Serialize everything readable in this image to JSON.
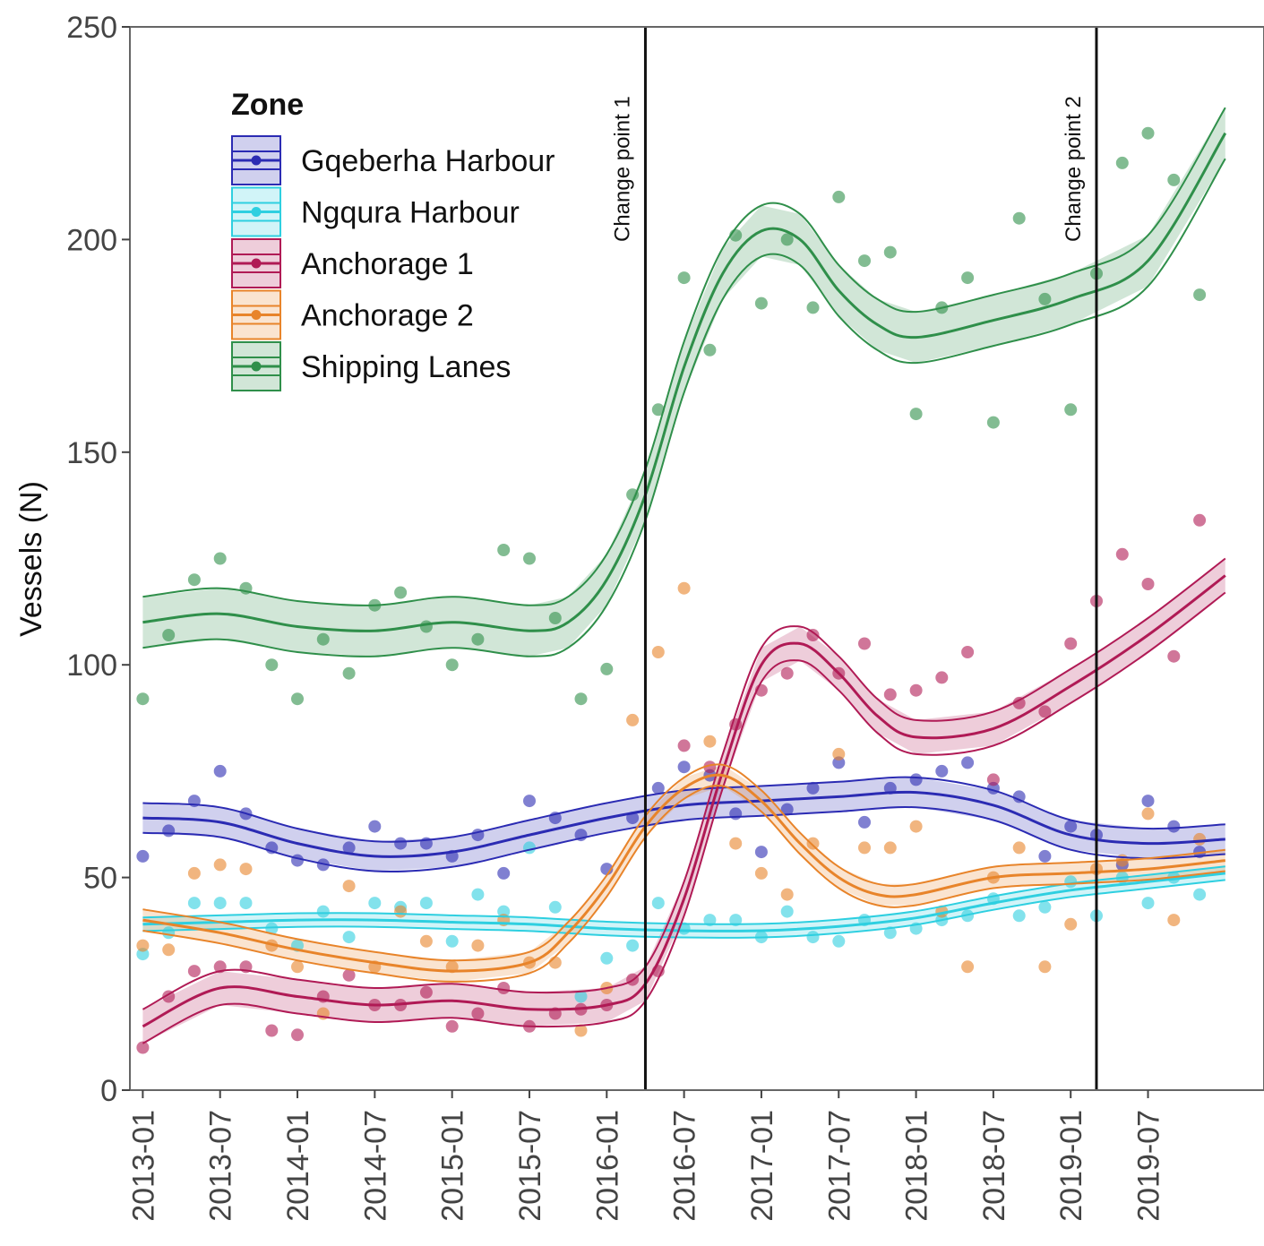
{
  "chart_data": {
    "type": "scatter",
    "ylabel": "Vessels (N)",
    "ylim": [
      0,
      250
    ],
    "yticks": [
      0,
      50,
      100,
      150,
      200,
      250
    ],
    "xlim": [
      "2012-12",
      "2020-04"
    ],
    "xticks": [
      "2013-01",
      "2013-07",
      "2014-01",
      "2014-07",
      "2015-01",
      "2015-07",
      "2016-01",
      "2016-07",
      "2017-01",
      "2017-07",
      "2018-01",
      "2018-07",
      "2019-01",
      "2019-07"
    ],
    "grid": false,
    "legend": {
      "title": "Zone",
      "position": "top-left"
    },
    "change_points": [
      {
        "label": "Change point 1",
        "x": "2016-04"
      },
      {
        "label": "Change point 2",
        "x": "2019-03"
      }
    ],
    "series": [
      {
        "name": "Gqeberha Harbour",
        "color": "#2b2bb3",
        "trend_x": [
          "2013-01",
          "2013-07",
          "2014-01",
          "2014-07",
          "2015-01",
          "2015-07",
          "2016-01",
          "2016-07",
          "2017-01",
          "2017-07",
          "2018-01",
          "2018-07",
          "2019-01",
          "2019-07",
          "2020-01"
        ],
        "trend_y": [
          64,
          63,
          58,
          55,
          56,
          60,
          64,
          67,
          68,
          69,
          70,
          67,
          60,
          58,
          59
        ],
        "band": 3.5,
        "points_x": [
          "2013-01",
          "2013-03",
          "2013-05",
          "2013-07",
          "2013-09",
          "2013-11",
          "2014-01",
          "2014-03",
          "2014-05",
          "2014-07",
          "2014-09",
          "2014-11",
          "2015-01",
          "2015-03",
          "2015-05",
          "2015-07",
          "2015-09",
          "2015-11",
          "2016-01",
          "2016-03",
          "2016-05",
          "2016-07",
          "2016-09",
          "2016-11",
          "2017-01",
          "2017-03",
          "2017-05",
          "2017-07",
          "2017-09",
          "2017-11",
          "2018-01",
          "2018-03",
          "2018-05",
          "2018-07",
          "2018-09",
          "2018-11",
          "2019-01",
          "2019-03",
          "2019-05",
          "2019-07",
          "2019-09",
          "2019-11"
        ],
        "points_y": [
          55,
          61,
          68,
          75,
          65,
          57,
          54,
          53,
          57,
          62,
          58,
          58,
          55,
          60,
          51,
          68,
          64,
          60,
          52,
          64,
          71,
          76,
          74,
          65,
          56,
          66,
          71,
          77,
          63,
          71,
          73,
          75,
          77,
          71,
          69,
          55,
          62,
          60,
          53,
          68,
          62,
          56
        ]
      },
      {
        "name": "Ngqura Harbour",
        "color": "#2ecfe0",
        "trend_x": [
          "2013-01",
          "2013-07",
          "2014-01",
          "2014-07",
          "2015-01",
          "2015-07",
          "2016-01",
          "2016-07",
          "2017-01",
          "2017-07",
          "2018-01",
          "2018-07",
          "2019-01",
          "2019-07",
          "2020-01"
        ],
        "trend_y": [
          39,
          39.5,
          40,
          40,
          39.5,
          39,
          38,
          37.5,
          37.5,
          38.5,
          40.5,
          44,
          47,
          49,
          51
        ],
        "band": 1.6,
        "points_x": [
          "2013-01",
          "2013-03",
          "2013-05",
          "2013-07",
          "2013-09",
          "2013-11",
          "2014-01",
          "2014-03",
          "2014-05",
          "2014-07",
          "2014-09",
          "2014-11",
          "2015-01",
          "2015-03",
          "2015-05",
          "2015-07",
          "2015-09",
          "2015-11",
          "2016-01",
          "2016-03",
          "2016-05",
          "2016-07",
          "2016-09",
          "2016-11",
          "2017-01",
          "2017-03",
          "2017-05",
          "2017-07",
          "2017-09",
          "2017-11",
          "2018-01",
          "2018-03",
          "2018-05",
          "2018-07",
          "2018-09",
          "2018-11",
          "2019-01",
          "2019-03",
          "2019-05",
          "2019-07",
          "2019-09",
          "2019-11"
        ],
        "points_y": [
          32,
          37,
          44,
          44,
          44,
          38,
          34,
          42,
          36,
          44,
          43,
          44,
          35,
          46,
          42,
          57,
          43,
          22,
          31,
          34,
          44,
          38,
          40,
          40,
          36,
          42,
          36,
          35,
          40,
          37,
          38,
          40,
          41,
          45,
          41,
          43,
          49,
          41,
          50,
          44,
          50,
          46
        ]
      },
      {
        "name": "Anchorage 1",
        "color": "#b01a55",
        "trend_x": [
          "2013-01",
          "2013-07",
          "2014-01",
          "2014-07",
          "2015-01",
          "2015-07",
          "2016-01",
          "2016-04",
          "2016-07",
          "2016-10",
          "2017-01",
          "2017-04",
          "2017-07",
          "2017-10",
          "2018-01",
          "2018-07",
          "2019-01",
          "2019-07",
          "2020-01"
        ],
        "trend_y": [
          15,
          24,
          22,
          20,
          21,
          19,
          20,
          25,
          45,
          75,
          100,
          105,
          98,
          88,
          83,
          85,
          95,
          107,
          121
        ],
        "band": 4,
        "points_x": [
          "2013-01",
          "2013-03",
          "2013-05",
          "2013-07",
          "2013-09",
          "2013-11",
          "2014-01",
          "2014-03",
          "2014-05",
          "2014-07",
          "2014-09",
          "2014-11",
          "2015-01",
          "2015-03",
          "2015-05",
          "2015-07",
          "2015-09",
          "2015-11",
          "2016-01",
          "2016-03",
          "2016-05",
          "2016-07",
          "2016-09",
          "2016-11",
          "2017-01",
          "2017-03",
          "2017-05",
          "2017-07",
          "2017-09",
          "2017-11",
          "2018-01",
          "2018-03",
          "2018-05",
          "2018-07",
          "2018-09",
          "2018-11",
          "2019-01",
          "2019-03",
          "2019-05",
          "2019-07",
          "2019-09",
          "2019-11"
        ],
        "points_y": [
          10,
          22,
          28,
          29,
          29,
          14,
          13,
          22,
          27,
          20,
          20,
          23,
          15,
          18,
          24,
          15,
          18,
          19,
          20,
          26,
          28,
          81,
          76,
          86,
          94,
          98,
          107,
          98,
          105,
          93,
          94,
          97,
          103,
          73,
          91,
          89,
          105,
          115,
          126,
          119,
          102,
          134
        ]
      },
      {
        "name": "Anchorage 2",
        "color": "#e8842a",
        "trend_x": [
          "2013-01",
          "2013-07",
          "2014-01",
          "2014-07",
          "2015-01",
          "2015-07",
          "2015-10",
          "2016-01",
          "2016-04",
          "2016-07",
          "2016-10",
          "2017-01",
          "2017-04",
          "2017-07",
          "2017-10",
          "2018-01",
          "2018-07",
          "2019-01",
          "2019-07",
          "2020-01"
        ],
        "trend_y": [
          40,
          37,
          33,
          30,
          28,
          30,
          37,
          48,
          62,
          71,
          74,
          68,
          58,
          50,
          46,
          46,
          50,
          51,
          52,
          54
        ],
        "band": 2.5,
        "points_x": [
          "2013-01",
          "2013-03",
          "2013-05",
          "2013-07",
          "2013-09",
          "2013-11",
          "2014-01",
          "2014-03",
          "2014-05",
          "2014-07",
          "2014-09",
          "2014-11",
          "2015-01",
          "2015-03",
          "2015-05",
          "2015-07",
          "2015-09",
          "2015-11",
          "2016-01",
          "2016-03",
          "2016-05",
          "2016-07",
          "2016-09",
          "2016-11",
          "2017-01",
          "2017-03",
          "2017-05",
          "2017-07",
          "2017-09",
          "2017-11",
          "2018-01",
          "2018-03",
          "2018-05",
          "2018-07",
          "2018-09",
          "2018-11",
          "2019-01",
          "2019-03",
          "2019-05",
          "2019-07",
          "2019-09",
          "2019-11"
        ],
        "points_y": [
          34,
          33,
          51,
          53,
          52,
          34,
          29,
          18,
          48,
          29,
          42,
          35,
          29,
          34,
          40,
          30,
          30,
          14,
          24,
          87,
          103,
          118,
          82,
          58,
          51,
          46,
          58,
          79,
          57,
          57,
          62,
          42,
          29,
          50,
          57,
          29,
          39,
          52,
          54,
          65,
          40,
          59
        ]
      },
      {
        "name": "Shipping Lanes",
        "color": "#2f8f4a",
        "trend_x": [
          "2013-01",
          "2013-07",
          "2014-01",
          "2014-07",
          "2015-01",
          "2015-07",
          "2015-10",
          "2016-01",
          "2016-04",
          "2016-07",
          "2016-10",
          "2017-01",
          "2017-04",
          "2017-07",
          "2017-10",
          "2018-01",
          "2018-07",
          "2019-01",
          "2019-07",
          "2020-01"
        ],
        "trend_y": [
          110,
          112,
          109,
          108,
          110,
          108,
          110,
          120,
          140,
          170,
          192,
          202,
          200,
          188,
          180,
          177,
          181,
          186,
          195,
          225
        ],
        "band": 6,
        "points_x": [
          "2013-01",
          "2013-03",
          "2013-05",
          "2013-07",
          "2013-09",
          "2013-11",
          "2014-01",
          "2014-03",
          "2014-05",
          "2014-07",
          "2014-09",
          "2014-11",
          "2015-01",
          "2015-03",
          "2015-05",
          "2015-07",
          "2015-09",
          "2015-11",
          "2016-01",
          "2016-03",
          "2016-05",
          "2016-07",
          "2016-09",
          "2016-11",
          "2017-01",
          "2017-03",
          "2017-05",
          "2017-07",
          "2017-09",
          "2017-11",
          "2018-01",
          "2018-03",
          "2018-05",
          "2018-07",
          "2018-09",
          "2018-11",
          "2019-01",
          "2019-03",
          "2019-05",
          "2019-07",
          "2019-09",
          "2019-11"
        ],
        "points_y": [
          92,
          107,
          120,
          125,
          118,
          100,
          92,
          106,
          98,
          114,
          117,
          109,
          100,
          106,
          127,
          125,
          111,
          92,
          99,
          140,
          160,
          191,
          174,
          201,
          185,
          200,
          184,
          210,
          195,
          197,
          159,
          184,
          191,
          157,
          205,
          186,
          160,
          192,
          218,
          225,
          214,
          187
        ]
      }
    ]
  }
}
